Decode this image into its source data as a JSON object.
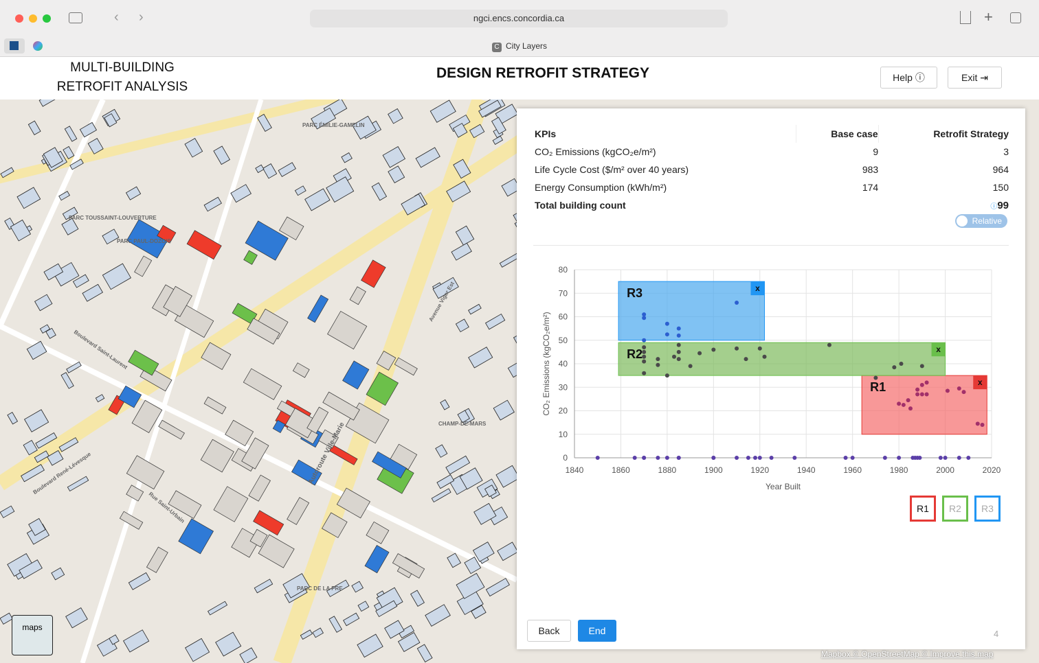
{
  "browser": {
    "url": "ngci.encs.concordia.ca",
    "tab_title": "City Layers",
    "tab_icon": "C"
  },
  "header": {
    "app_title_line1": "MULTI-BUILDING",
    "app_title_line2": "RETROFIT ANALYSIS",
    "page_title": "DESIGN RETROFIT STRATEGY",
    "help": "Help",
    "exit": "Exit"
  },
  "map": {
    "labels": [
      "PARC ÉMILIE-GAMELIN",
      "PARC TOUSSAINT-LOUVERTURE",
      "PARC PAUL-DOZOIS",
      "CHAMP-DE-MARS",
      "PARC DE LA PRE",
      "Autoroute Ville-Marie",
      "Boulevard René-Lévesque",
      "Rue Saint-Urbain",
      "Boulevard Saint-Laurent",
      "Avenue Viger Est"
    ],
    "style_button": "maps",
    "attribution": "Mapbox © OpenStreetMap © Improve this map"
  },
  "kpi_table": {
    "headers": [
      "KPIs",
      "Base case",
      "Retrofit Strategy"
    ],
    "rows": [
      [
        "CO₂ Emissions (kgCO₂e/m²)",
        9,
        3
      ],
      [
        "Life Cycle Cost ($/m² over 40 years)",
        983,
        964
      ],
      [
        "Energy Consumption (kWh/m²)",
        174,
        150
      ]
    ],
    "total_label": "Total building count",
    "total_value": 99,
    "toggle": "Relative"
  },
  "chart": {
    "type": "scatter",
    "x_label": "Year Built",
    "y_label": "CO₂ Emissions (kgCO₂e/m²)",
    "xlim": [
      1840,
      2020
    ],
    "xticks": [
      1840,
      1860,
      1880,
      1900,
      1920,
      1940,
      1960,
      1980,
      2000,
      2020
    ],
    "ylim": [
      0,
      80
    ],
    "yticks": [
      0,
      10,
      20,
      30,
      40,
      50,
      60,
      70,
      80
    ],
    "grid": true,
    "series": [
      {
        "color": "#5b3fa8",
        "x": [
          1850,
          1866,
          1870,
          1870,
          1876,
          1880,
          1885,
          1885,
          1900,
          1900,
          1910,
          1915,
          1918,
          1920,
          1925,
          1935,
          1957,
          1960,
          1974,
          1980,
          1986,
          1987,
          1988,
          1989,
          1998,
          2000,
          2006,
          2010
        ],
        "values": [
          0,
          0,
          0,
          0,
          0,
          0,
          0,
          0,
          0,
          0,
          0,
          0,
          0,
          0,
          0,
          0,
          0,
          0,
          0,
          0,
          0,
          0,
          0,
          0,
          0,
          0,
          0,
          0
        ]
      },
      {
        "color": "#2c5fd0",
        "x": [
          1870,
          1870,
          1880,
          1880,
          1885,
          1885,
          1910,
          1870
        ],
        "values": [
          61,
          59.5,
          57,
          52.5,
          55,
          52,
          66,
          50
        ]
      },
      {
        "color": "#4a4a4a",
        "x": [
          1870,
          1870,
          1870,
          1870,
          1870,
          1876,
          1876,
          1880,
          1883,
          1885,
          1885,
          1885,
          1890,
          1894,
          1900,
          1910,
          1914,
          1920,
          1922,
          1950,
          1970,
          1978,
          1981,
          1990
        ],
        "values": [
          47,
          45,
          43,
          41,
          36,
          42,
          39.5,
          35,
          43,
          45,
          48,
          42,
          39,
          44.5,
          46,
          46.5,
          42,
          46.5,
          43,
          48,
          34,
          38.5,
          40,
          39
        ]
      },
      {
        "color": "#a2306a",
        "x": [
          1980,
          1982,
          1984,
          1985,
          1988,
          1988,
          1990,
          1990,
          1992,
          1992,
          2001,
          2006,
          2008,
          2014,
          2016
        ],
        "values": [
          23,
          22.5,
          24.5,
          21,
          27,
          29,
          31,
          27,
          32,
          27,
          28.5,
          29.5,
          28,
          14.5,
          14
        ]
      }
    ],
    "regions": [
      {
        "label": "R1",
        "close": "x",
        "x": [
          1964,
          2018
        ],
        "y": [
          10,
          35
        ],
        "color": "#f56c6c",
        "border": "#e53935"
      },
      {
        "label": "R2",
        "close": "x",
        "x": [
          1859,
          2000
        ],
        "y": [
          35,
          49
        ],
        "color": "#7dbb5c",
        "border": "#6abf4b"
      },
      {
        "label": "R3",
        "close": "x",
        "x": [
          1859,
          1922
        ],
        "y": [
          50,
          75
        ],
        "color": "#4aa8ee",
        "border": "#2196f3"
      }
    ]
  },
  "footer": {
    "back": "Back",
    "end": "End",
    "step": 4
  }
}
